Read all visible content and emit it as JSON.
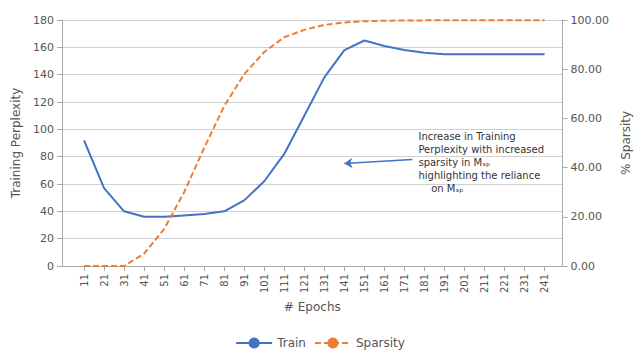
{
  "chart_data": {
    "type": "line",
    "title": "",
    "x_label": "# Epochs",
    "y_label": "Training Perplexity",
    "y2_label": "% Sparsity",
    "x": [
      11,
      21,
      31,
      41,
      51,
      61,
      71,
      81,
      91,
      101,
      111,
      121,
      131,
      141,
      151,
      161,
      171,
      181,
      191,
      201,
      211,
      221,
      231,
      241
    ],
    "series": [
      {
        "name": "Train",
        "color": "#4472c4",
        "line_style": "solid",
        "values": [
          92,
          57,
          40,
          36,
          36,
          37,
          38,
          40,
          48,
          62,
          82,
          110,
          138,
          158,
          165,
          161,
          158,
          156,
          155,
          155,
          155,
          155,
          155,
          155
        ]
      },
      {
        "name": "Sparsity",
        "color": "#ed7d31",
        "line_style": "dashed",
        "axis": "y2",
        "values": [
          0,
          0,
          0,
          5,
          15,
          30,
          48,
          65,
          78,
          87,
          93,
          96,
          98,
          99,
          99.5,
          99.7,
          99.8,
          99.85,
          99.9,
          99.9,
          99.9,
          99.9,
          99.9,
          99.9
        ]
      }
    ],
    "xlim": [
      0,
      250
    ],
    "xticks": [
      11,
      21,
      31,
      41,
      51,
      61,
      71,
      81,
      91,
      101,
      111,
      121,
      131,
      141,
      151,
      161,
      171,
      181,
      191,
      201,
      211,
      221,
      231,
      241
    ],
    "ylim": [
      0,
      180
    ],
    "yticks": [
      0,
      20,
      40,
      60,
      80,
      100,
      120,
      140,
      160,
      180
    ],
    "y2lim": [
      0.0,
      100.0
    ],
    "y2ticks": [
      {
        "value": 0,
        "label": "0.00"
      },
      {
        "value": 20,
        "label": "20.00"
      },
      {
        "value": 40,
        "label": "40.00"
      },
      {
        "value": 60,
        "label": "60.00"
      },
      {
        "value": 80,
        "label": "80.00"
      },
      {
        "value": 100,
        "label": "100.00"
      }
    ],
    "annotations": [
      "Increase in Training\nPerplexity with increased\nsparsity in Mₛₚ\nhighlighting the reliance\n    on Mₛₚ"
    ],
    "grid": true,
    "legend": "bottom"
  }
}
